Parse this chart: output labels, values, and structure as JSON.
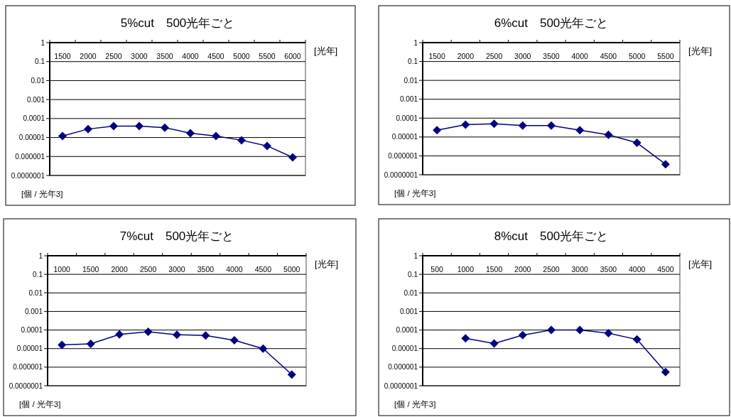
{
  "chart_data": [
    {
      "type": "line",
      "title": "5%cut　500光年ごと",
      "xlabel": "[光年]",
      "ylabel": "[個 / 光年3]",
      "categories": [
        "1500",
        "2000",
        "2500",
        "3000",
        "3500",
        "4000",
        "4500",
        "5000",
        "5500",
        "6000"
      ],
      "series": [
        {
          "color": "#000080",
          "values": [
            1.2e-05,
            2.8e-05,
            4e-05,
            4e-05,
            3.3e-05,
            1.7e-05,
            1.2e-05,
            7.2e-06,
            3.6e-06,
            9e-07
          ]
        }
      ],
      "log": "y",
      "ylim": [
        1e-07,
        1
      ],
      "yticks": [
        {
          "value": 1e-07,
          "label": "0.0000001"
        },
        {
          "value": 1e-06,
          "label": "0.000001"
        },
        {
          "value": 1e-05,
          "label": "0.00001"
        },
        {
          "value": 0.0001,
          "label": "0.0001"
        },
        {
          "value": 0.001,
          "label": "0.001"
        },
        {
          "value": 0.01,
          "label": "0.01"
        },
        {
          "value": 0.1,
          "label": "0.1"
        },
        {
          "value": 1,
          "label": "1"
        }
      ],
      "grid": "y",
      "marker": "diamond",
      "line_style": "solid"
    },
    {
      "type": "line",
      "title": "6%cut　500光年ごと",
      "xlabel": "[光年]",
      "ylabel": "[個 / 光年3]",
      "categories": [
        "1500",
        "2000",
        "2500",
        "3000",
        "3500",
        "4000",
        "4500",
        "5000",
        "5500"
      ],
      "series": [
        {
          "color": "#000080",
          "values": [
            2.3e-05,
            4.5e-05,
            5e-05,
            4e-05,
            4e-05,
            2.3e-05,
            1.3e-05,
            4.9e-06,
            3.6e-07
          ]
        }
      ],
      "log": "y",
      "ylim": [
        1e-07,
        1
      ],
      "yticks": [
        {
          "value": 1e-07,
          "label": "0.0000001"
        },
        {
          "value": 1e-06,
          "label": "0.000001"
        },
        {
          "value": 1e-05,
          "label": "0.00001"
        },
        {
          "value": 0.0001,
          "label": "0.0001"
        },
        {
          "value": 0.001,
          "label": "0.001"
        },
        {
          "value": 0.01,
          "label": "0.01"
        },
        {
          "value": 0.1,
          "label": "0.1"
        },
        {
          "value": 1,
          "label": "1"
        }
      ],
      "grid": "y",
      "marker": "diamond",
      "line_style": "solid"
    },
    {
      "type": "line",
      "title": "7%cut　500光年ごと",
      "xlabel": "[光年]",
      "ylabel": "[個 / 光年3]",
      "categories": [
        "1000",
        "1500",
        "2000",
        "2500",
        "3000",
        "3500",
        "4000",
        "4500",
        "5000"
      ],
      "series": [
        {
          "color": "#000080",
          "values": [
            1.6e-05,
            1.8e-05,
            5.8e-05,
            8.1e-05,
            5.6e-05,
            5.1e-05,
            2.8e-05,
            1e-05,
            4e-07
          ]
        }
      ],
      "log": "y",
      "ylim": [
        1e-07,
        1
      ],
      "yticks": [
        {
          "value": 1e-07,
          "label": "0.0000001"
        },
        {
          "value": 1e-06,
          "label": "0.000001"
        },
        {
          "value": 1e-05,
          "label": "0.00001"
        },
        {
          "value": 0.0001,
          "label": "0.0001"
        },
        {
          "value": 0.001,
          "label": "0.001"
        },
        {
          "value": 0.01,
          "label": "0.01"
        },
        {
          "value": 0.1,
          "label": "0.1"
        },
        {
          "value": 1,
          "label": "1"
        }
      ],
      "grid": "y",
      "marker": "diamond",
      "line_style": "solid"
    },
    {
      "type": "line",
      "title": "8%cut　500光年ごと",
      "xlabel": "[光年]",
      "ylabel": "[個 / 光年3]",
      "categories": [
        "500",
        "1000",
        "1500",
        "2000",
        "2500",
        "3000",
        "3500",
        "4000",
        "4500"
      ],
      "series": [
        {
          "color": "#000080",
          "values": [
            null,
            3.6e-05,
            1.9e-05,
            5.3e-05,
            0.0001,
            0.0001,
            6.8e-05,
            3.1e-05,
            5.5e-07
          ]
        }
      ],
      "log": "y",
      "ylim": [
        1e-07,
        1
      ],
      "yticks": [
        {
          "value": 1e-07,
          "label": "0.0000001"
        },
        {
          "value": 1e-06,
          "label": "0.000001"
        },
        {
          "value": 1e-05,
          "label": "0.00001"
        },
        {
          "value": 0.0001,
          "label": "0.0001"
        },
        {
          "value": 0.001,
          "label": "0.001"
        },
        {
          "value": 0.01,
          "label": "0.01"
        },
        {
          "value": 0.1,
          "label": "0.1"
        },
        {
          "value": 1,
          "label": "1"
        }
      ],
      "grid": "y",
      "marker": "diamond",
      "line_style": "solid"
    }
  ]
}
